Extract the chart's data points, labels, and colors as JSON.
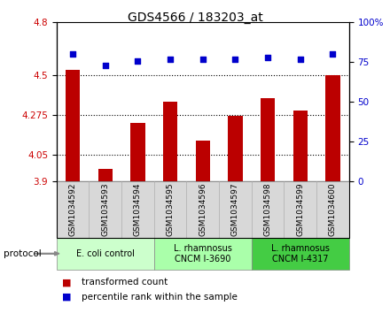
{
  "title": "GDS4566 / 183203_at",
  "samples": [
    "GSM1034592",
    "GSM1034593",
    "GSM1034594",
    "GSM1034595",
    "GSM1034596",
    "GSM1034597",
    "GSM1034598",
    "GSM1034599",
    "GSM1034600"
  ],
  "transformed_count": [
    4.53,
    3.97,
    4.23,
    4.35,
    4.13,
    4.27,
    4.37,
    4.3,
    4.5
  ],
  "percentile_rank": [
    80,
    73,
    76,
    77,
    77,
    77,
    78,
    77,
    80
  ],
  "ylim_left": [
    3.9,
    4.8
  ],
  "yticks_left": [
    3.9,
    4.05,
    4.275,
    4.5,
    4.8
  ],
  "ytick_labels_left": [
    "3.9",
    "4.05",
    "4.275",
    "4.5",
    "4.8"
  ],
  "ylim_right": [
    0,
    100
  ],
  "yticks_right": [
    0,
    25,
    50,
    75,
    100
  ],
  "ytick_labels_right": [
    "0",
    "25",
    "50",
    "75",
    "100%"
  ],
  "bar_color": "#bb0000",
  "dot_color": "#0000cc",
  "protocol_label": "protocol",
  "groups": [
    {
      "label": "E. coli control",
      "start": 0,
      "end": 3,
      "color": "#ccffcc"
    },
    {
      "label": "L. rhamnosus\nCNCM I-3690",
      "start": 3,
      "end": 6,
      "color": "#aaffaa"
    },
    {
      "label": "L. rhamnosus\nCNCM I-4317",
      "start": 6,
      "end": 9,
      "color": "#44cc44"
    }
  ],
  "legend_bar_label": "transformed count",
  "legend_dot_label": "percentile rank within the sample",
  "tick_label_color_left": "#cc0000",
  "tick_label_color_right": "#0000cc",
  "bar_width": 0.45,
  "plot_bg": "#ffffff",
  "sample_bg": "#d8d8d8",
  "grid_dotted_at": [
    4.05,
    4.275,
    4.5
  ]
}
